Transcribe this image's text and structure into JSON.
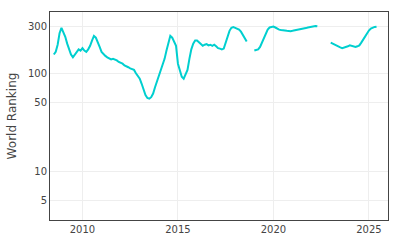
{
  "chart_data": {
    "type": "line",
    "ylabel": "World Ranking",
    "color": "#00CFCF",
    "log": "y",
    "grid": true,
    "ylim": [
      3.2,
      420
    ],
    "yticks": [
      5,
      10,
      50,
      100,
      300
    ],
    "xlim": [
      2008.3,
      2026.0
    ],
    "xticks": [
      2010,
      2015,
      2020,
      2025
    ],
    "series": [
      {
        "x": [
          2008.5,
          2008.6,
          2008.7,
          2008.8,
          2008.9,
          2009.0,
          2009.1,
          2009.2,
          2009.3,
          2009.4,
          2009.5,
          2009.6,
          2009.7,
          2009.8,
          2009.9,
          2010.0,
          2010.1,
          2010.2,
          2010.3,
          2010.4,
          2010.5,
          2010.6,
          2010.7,
          2010.8,
          2010.9,
          2011.0,
          2011.1,
          2011.2,
          2011.3,
          2011.4,
          2011.5,
          2011.6,
          2011.7,
          2011.8,
          2011.9,
          2012.0,
          2012.1,
          2012.2,
          2012.3,
          2012.4,
          2012.5,
          2012.6,
          2012.7,
          2012.8,
          2012.9,
          2013.0,
          2013.1,
          2013.2,
          2013.3,
          2013.4,
          2013.5,
          2013.6,
          2013.7,
          2013.8,
          2013.9,
          2014.0,
          2014.1,
          2014.2,
          2014.3,
          2014.4,
          2014.5,
          2014.6,
          2014.7,
          2014.8,
          2014.9,
          2015.0,
          2015.1,
          2015.2,
          2015.3,
          2015.4,
          2015.5,
          2015.6,
          2015.7,
          2015.8,
          2015.9,
          2016.0,
          2016.1,
          2016.2,
          2016.3,
          2016.4,
          2016.5,
          2016.6,
          2016.7,
          2016.8,
          2016.9,
          2017.0,
          2017.1,
          2017.2,
          2017.3,
          2017.4,
          2017.5,
          2017.6,
          2017.7,
          2017.8,
          2017.9,
          2018.0,
          2018.1,
          2018.2,
          2018.3,
          2018.4,
          2018.5,
          2018.6
        ],
        "values": [
          155,
          165,
          195,
          255,
          290,
          265,
          235,
          200,
          175,
          155,
          145,
          155,
          165,
          175,
          170,
          180,
          170,
          165,
          175,
          190,
          215,
          240,
          230,
          210,
          185,
          165,
          155,
          150,
          145,
          140,
          138,
          140,
          138,
          135,
          130,
          128,
          125,
          120,
          118,
          115,
          112,
          110,
          108,
          100,
          95,
          88,
          78,
          68,
          60,
          56,
          55,
          57,
          62,
          72,
          83,
          95,
          108,
          120,
          140,
          170,
          210,
          240,
          230,
          210,
          190,
          125,
          105,
          92,
          88,
          100,
          108,
          140,
          175,
          200,
          215,
          215,
          205,
          195,
          190,
          195,
          198,
          192,
          195,
          190,
          195,
          188,
          180,
          178,
          175,
          178,
          205,
          240,
          270,
          290,
          295,
          290,
          285,
          278,
          265,
          245,
          225,
          210
        ]
      },
      {
        "x": [
          2019.0,
          2019.1,
          2019.2,
          2019.3,
          2019.4,
          2019.5,
          2019.6,
          2019.7,
          2019.8,
          2019.9,
          2020.0,
          2020.1,
          2020.2,
          2020.3,
          2020.4,
          2020.5,
          2020.6,
          2020.7,
          2020.8,
          2020.9,
          2021.0,
          2021.1,
          2021.2,
          2021.3,
          2021.4,
          2021.5,
          2021.6,
          2021.7,
          2021.8,
          2021.9,
          2022.0,
          2022.1,
          2022.2,
          2022.3
        ],
        "values": [
          170,
          172,
          175,
          185,
          205,
          230,
          258,
          278,
          292,
          296,
          298,
          292,
          282,
          278,
          275,
          275,
          272,
          270,
          268,
          268,
          270,
          272,
          275,
          278,
          280,
          282,
          285,
          288,
          292,
          295,
          298,
          300,
          302,
          300
        ]
      },
      {
        "x": [
          2023.0,
          2023.1,
          2023.2,
          2023.3,
          2023.4,
          2023.5,
          2023.6,
          2023.7,
          2023.8,
          2023.9,
          2024.0,
          2024.1,
          2024.2,
          2024.3,
          2024.4,
          2024.5,
          2024.6,
          2024.7,
          2024.8,
          2024.9,
          2025.0,
          2025.1,
          2025.2,
          2025.3,
          2025.4
        ],
        "values": [
          205,
          200,
          195,
          190,
          185,
          183,
          180,
          182,
          185,
          188,
          192,
          190,
          188,
          185,
          188,
          192,
          205,
          222,
          240,
          258,
          272,
          285,
          292,
          296,
          298
        ]
      }
    ]
  }
}
